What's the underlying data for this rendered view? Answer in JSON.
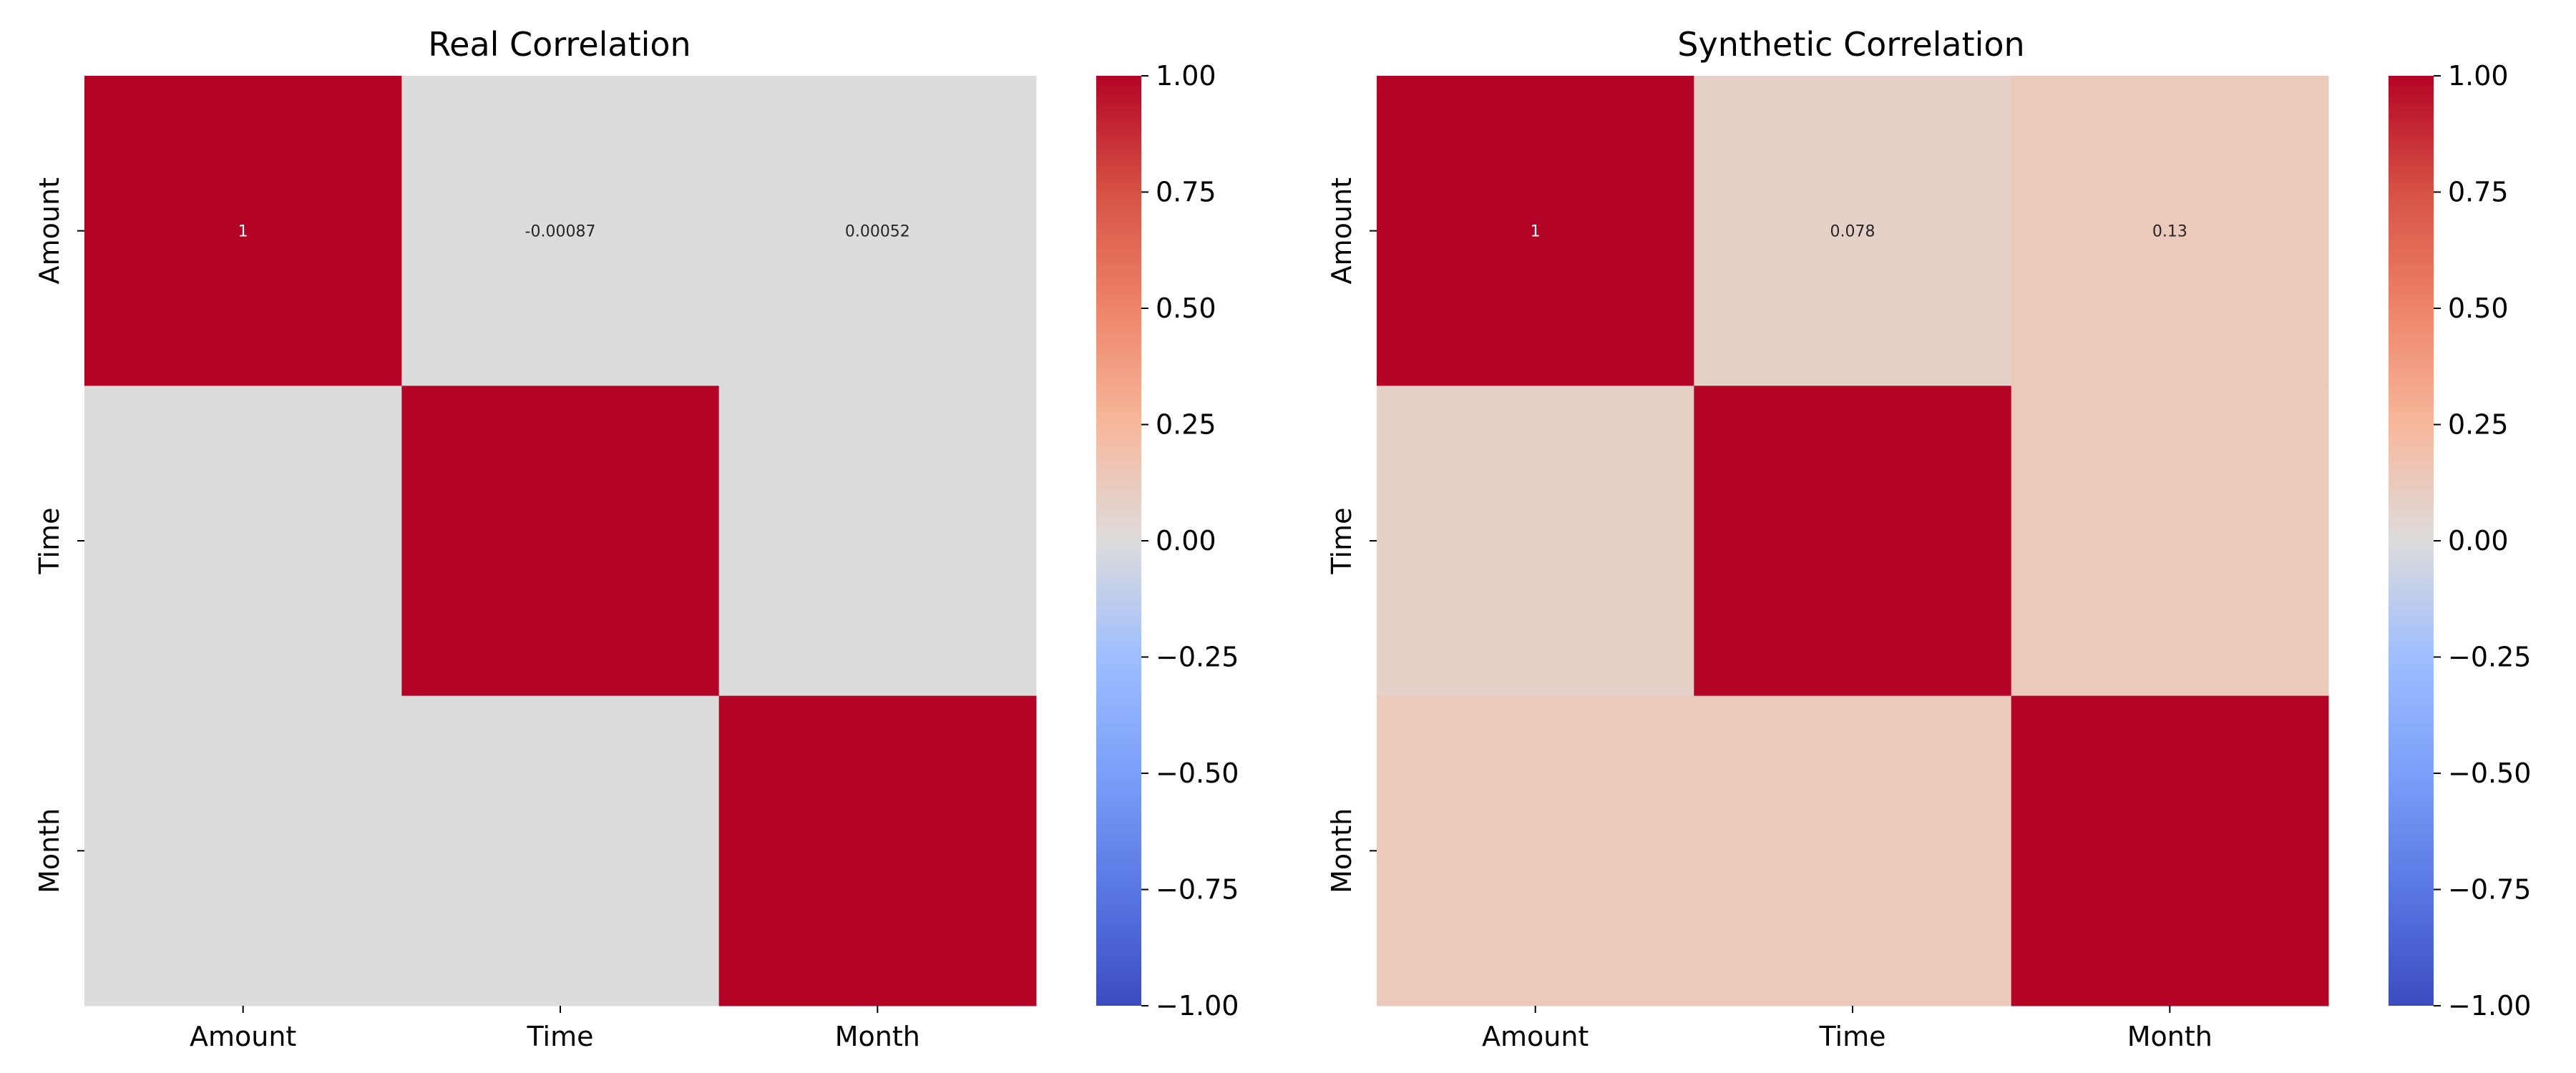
{
  "chart_data": [
    {
      "type": "heatmap",
      "title": "Real Correlation",
      "row_labels": [
        "Amount",
        "Time",
        "Month"
      ],
      "col_labels": [
        "Amount",
        "Time",
        "Month"
      ],
      "values": [
        [
          1,
          -0.00087,
          0.00052
        ],
        [
          -0.00087,
          1,
          0.001
        ],
        [
          0.00052,
          0.001,
          1
        ]
      ],
      "annotations": [
        [
          "1",
          "-0.00087",
          "0.00052"
        ],
        [
          "",
          "",
          ""
        ],
        [
          "",
          "",
          ""
        ]
      ],
      "colormap": "coolwarm",
      "vmin": -1,
      "vmax": 1,
      "colorbar_ticks": [
        1.0,
        0.75,
        0.5,
        0.25,
        0.0,
        -0.25,
        -0.5,
        -0.75,
        -1.0
      ],
      "colorbar_tick_labels": [
        "1.00",
        "0.75",
        "0.50",
        "0.25",
        "0.00",
        "−0.25",
        "−0.50",
        "−0.75",
        "−1.00"
      ]
    },
    {
      "type": "heatmap",
      "title": "Synthetic Correlation",
      "row_labels": [
        "Amount",
        "Time",
        "Month"
      ],
      "col_labels": [
        "Amount",
        "Time",
        "Month"
      ],
      "values": [
        [
          1,
          0.078,
          0.13
        ],
        [
          0.078,
          1,
          0.13
        ],
        [
          0.13,
          0.13,
          1
        ]
      ],
      "annotations": [
        [
          "1",
          "0.078",
          "0.13"
        ],
        [
          "",
          "",
          ""
        ],
        [
          "",
          "",
          ""
        ]
      ],
      "colormap": "coolwarm",
      "vmin": -1,
      "vmax": 1,
      "colorbar_ticks": [
        1.0,
        0.75,
        0.5,
        0.25,
        0.0,
        -0.25,
        -0.5,
        -0.75,
        -1.0
      ],
      "colorbar_tick_labels": [
        "1.00",
        "0.75",
        "0.50",
        "0.25",
        "0.00",
        "−0.25",
        "−0.50",
        "−0.75",
        "−1.00"
      ]
    }
  ]
}
